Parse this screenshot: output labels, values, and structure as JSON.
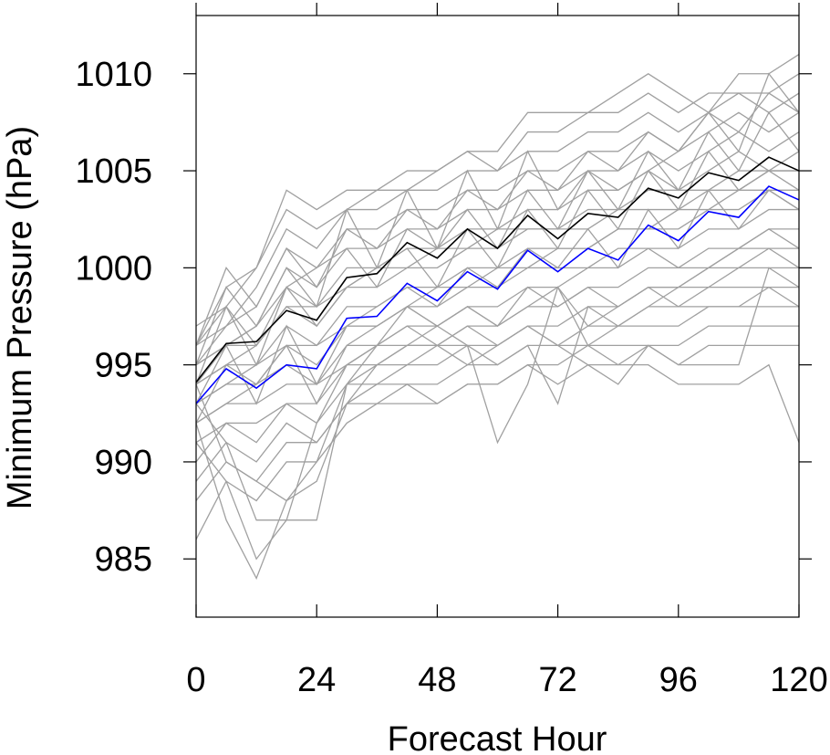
{
  "chart_data": {
    "type": "line",
    "title": "",
    "xlabel": "Forecast Hour",
    "ylabel": "Minimum Pressure (hPa)",
    "xlim": [
      0,
      120
    ],
    "ylim": [
      982,
      1013
    ],
    "xticks": [
      0,
      24,
      48,
      72,
      96,
      120
    ],
    "yticks": [
      985,
      990,
      995,
      1000,
      1005,
      1010
    ],
    "grid": false,
    "legend": "none",
    "colors": {
      "ensemble": "#a0a0a0",
      "mean": "#000000",
      "control": "#0000ff"
    },
    "x": [
      0,
      6,
      12,
      18,
      24,
      30,
      36,
      42,
      48,
      54,
      60,
      66,
      72,
      78,
      84,
      90,
      96,
      102,
      108,
      114,
      120
    ],
    "series": [
      {
        "role": "ensemble",
        "values": [
          996,
          999,
          1000,
          1004,
          1003,
          1004,
          1004,
          1005,
          1005,
          1006,
          1006,
          1008,
          1008,
          1008,
          1009,
          1010,
          1009,
          1008,
          1010,
          1010,
          1011
        ]
      },
      {
        "role": "ensemble",
        "values": [
          996,
          998,
          1000,
          1003,
          1002,
          1003,
          1004,
          1004,
          1005,
          1006,
          1005,
          1007,
          1007,
          1008,
          1008,
          1009,
          1008,
          1009,
          1009,
          1009,
          1010
        ]
      },
      {
        "role": "ensemble",
        "values": [
          996,
          997,
          999,
          1002,
          1001,
          1003,
          1003,
          1004,
          1004,
          1005,
          1005,
          1006,
          1006,
          1007,
          1007,
          1008,
          1007,
          1008,
          1009,
          1008,
          1009
        ]
      },
      {
        "role": "ensemble",
        "values": [
          995,
          997,
          998,
          1001,
          1000,
          1002,
          1002,
          1003,
          1003,
          1004,
          1004,
          1005,
          1005,
          1006,
          1006,
          1007,
          1006,
          1007,
          1008,
          1007,
          1008
        ]
      },
      {
        "role": "ensemble",
        "values": [
          995,
          996,
          997,
          1000,
          999,
          1001,
          1001,
          1002,
          1002,
          1003,
          1003,
          1004,
          1004,
          1005,
          1005,
          1006,
          1005,
          1006,
          1007,
          1006,
          1007
        ]
      },
      {
        "role": "ensemble",
        "values": [
          995,
          996,
          997,
          999,
          998,
          1000,
          1000,
          1001,
          1001,
          1002,
          1002,
          1003,
          1003,
          1004,
          1004,
          1005,
          1004,
          1005,
          1006,
          1005,
          1006
        ]
      },
      {
        "role": "ensemble",
        "values": [
          994,
          996,
          996,
          998,
          998,
          999,
          1000,
          1000,
          1001,
          1001,
          1002,
          1002,
          1002,
          1003,
          1003,
          1004,
          1004,
          1004,
          1005,
          1005,
          1005
        ]
      },
      {
        "role": "ensemble",
        "values": [
          994,
          995,
          996,
          998,
          997,
          999,
          999,
          1000,
          1000,
          1001,
          1001,
          1002,
          1002,
          1002,
          1003,
          1003,
          1003,
          1004,
          1004,
          1005,
          1004
        ]
      },
      {
        "role": "ensemble",
        "values": [
          994,
          995,
          995,
          997,
          996,
          998,
          998,
          999,
          999,
          1000,
          1000,
          1001,
          1001,
          1001,
          1002,
          1002,
          1002,
          1003,
          1003,
          1004,
          1003
        ]
      },
      {
        "role": "ensemble",
        "values": [
          993,
          994,
          995,
          996,
          996,
          997,
          997,
          998,
          998,
          999,
          999,
          1000,
          1000,
          1000,
          1001,
          1001,
          1001,
          1002,
          1002,
          1003,
          1003
        ]
      },
      {
        "role": "ensemble",
        "values": [
          993,
          994,
          994,
          996,
          995,
          997,
          997,
          998,
          997,
          998,
          998,
          999,
          999,
          1000,
          1000,
          1001,
          1000,
          1001,
          1001,
          1002,
          1002
        ]
      },
      {
        "role": "ensemble",
        "values": [
          992,
          993,
          994,
          995,
          994,
          996,
          996,
          997,
          997,
          998,
          997,
          999,
          998,
          999,
          999,
          1000,
          1000,
          1000,
          1001,
          1001,
          1001
        ]
      },
      {
        "role": "ensemble",
        "values": [
          992,
          993,
          993,
          994,
          994,
          995,
          996,
          996,
          996,
          997,
          997,
          998,
          998,
          999,
          998,
          999,
          999,
          1000,
          1000,
          1000,
          1000
        ]
      },
      {
        "role": "ensemble",
        "values": [
          991,
          992,
          992,
          993,
          993,
          995,
          995,
          996,
          996,
          997,
          996,
          997,
          997,
          998,
          998,
          999,
          998,
          999,
          999,
          999,
          999
        ]
      },
      {
        "role": "ensemble",
        "values": [
          990,
          992,
          991,
          993,
          992,
          994,
          994,
          995,
          995,
          996,
          996,
          997,
          996,
          997,
          997,
          998,
          998,
          998,
          998,
          999,
          998
        ]
      },
      {
        "role": "ensemble",
        "values": [
          989,
          991,
          990,
          992,
          991,
          993,
          994,
          994,
          994,
          995,
          995,
          996,
          996,
          996,
          997,
          997,
          997,
          998,
          998,
          998,
          998
        ]
      },
      {
        "role": "ensemble",
        "values": [
          988,
          990,
          989,
          991,
          991,
          993,
          993,
          994,
          993,
          994,
          994,
          995,
          995,
          996,
          996,
          996,
          996,
          997,
          997,
          997,
          997
        ]
      },
      {
        "role": "ensemble",
        "values": [
          986,
          989,
          988,
          990,
          990,
          992,
          993,
          993,
          993,
          994,
          994,
          995,
          994,
          995,
          995,
          996,
          995,
          996,
          996,
          996,
          996
        ]
      },
      {
        "role": "ensemble",
        "values": [
          991,
          989,
          985,
          987,
          992,
          995,
          996,
          997,
          996,
          996,
          991,
          994,
          999,
          997,
          998,
          999,
          999,
          1000,
          1001,
          1002,
          1001
        ]
      },
      {
        "role": "ensemble",
        "values": [
          992,
          987,
          984,
          988,
          990,
          994,
          995,
          996,
          997,
          996,
          995,
          996,
          993,
          998,
          997,
          998,
          999,
          999,
          1000,
          1001,
          1000
        ]
      },
      {
        "role": "ensemble",
        "values": [
          993,
          991,
          987,
          987,
          987,
          994,
          996,
          998,
          997,
          998,
          997,
          998,
          999,
          996,
          995,
          995,
          994,
          994,
          994,
          995,
          991
        ]
      },
      {
        "role": "ensemble",
        "values": [
          994,
          990,
          989,
          988,
          989,
          993,
          995,
          995,
          996,
          995,
          996,
          997,
          996,
          995,
          994,
          996,
          995,
          995,
          995,
          1000,
          999
        ]
      },
      {
        "role": "ensemble",
        "values": [
          997,
          998,
          996,
          999,
          1000,
          1001,
          999,
          1002,
          1001,
          1003,
          1001,
          1004,
          1002,
          1005,
          1003,
          1006,
          1004,
          1007,
          1005,
          1008,
          1006
        ]
      },
      {
        "role": "ensemble",
        "values": [
          996,
          1000,
          998,
          1001,
          999,
          1002,
          1001,
          1003,
          1002,
          1004,
          1003,
          1005,
          1004,
          1006,
          1005,
          1007,
          1006,
          1008,
          1007,
          1009,
          1008
        ]
      },
      {
        "role": "ensemble",
        "values": [
          995,
          999,
          997,
          1000,
          998,
          1003,
          1000,
          1004,
          1001,
          1005,
          1002,
          1006,
          1003,
          1005,
          1004,
          1005,
          1006,
          1008,
          1006,
          1010,
          1008
        ]
      },
      {
        "role": "ensemble",
        "values": [
          994,
          998,
          995,
          999,
          997,
          999,
          1000,
          1001,
          999,
          1002,
          1000,
          1003,
          1001,
          1004,
          1002,
          1005,
          1003,
          1006,
          1004,
          1005,
          1005
        ]
      },
      {
        "role": "ensemble",
        "values": [
          993,
          996,
          993,
          997,
          994,
          997,
          998,
          999,
          998,
          1000,
          999,
          1001,
          1000,
          1002,
          1000,
          1003,
          1001,
          1004,
          1002,
          1004,
          1003
        ]
      },
      {
        "role": "ensemble",
        "values": [
          992,
          995,
          994,
          996,
          993,
          996,
          997,
          998,
          999,
          999,
          1000,
          1000,
          1001,
          1001,
          1002,
          1002,
          1003,
          1003,
          1004,
          1004,
          1004
        ]
      },
      {
        "role": "mean",
        "values": [
          994.1,
          996.1,
          996.2,
          997.8,
          997.3,
          999.5,
          999.7,
          1001.3,
          1000.5,
          1002.0,
          1001.0,
          1002.7,
          1001.5,
          1002.8,
          1002.6,
          1004.1,
          1003.6,
          1004.9,
          1004.5,
          1005.7,
          1005.0
        ]
      },
      {
        "role": "control",
        "values": [
          993.0,
          994.8,
          993.8,
          995.0,
          994.8,
          997.4,
          997.5,
          999.2,
          998.3,
          999.8,
          998.9,
          1000.9,
          999.8,
          1001.0,
          1000.4,
          1002.2,
          1001.4,
          1002.9,
          1002.6,
          1004.2,
          1003.5
        ]
      }
    ]
  }
}
